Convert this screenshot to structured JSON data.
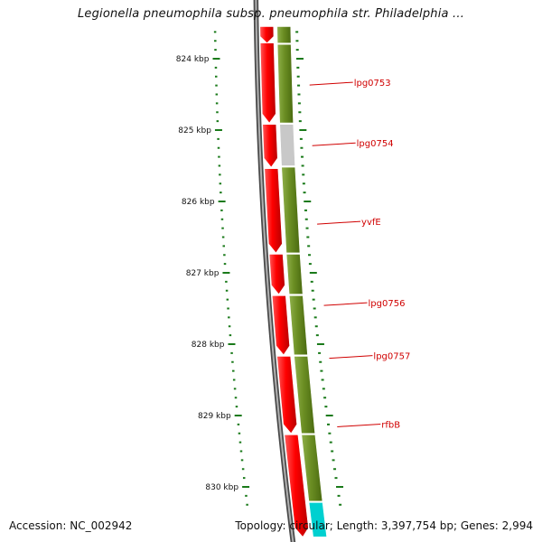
{
  "title": "Legionella pneumophila subsp. pneumophila str. Philadelphia ...",
  "footer": {
    "accession": "Accession: NC_002942",
    "summary": "Topology: circular; Length: 3,397,754 bp; Genes: 2,994"
  },
  "colors": {
    "backbone": "#808080",
    "reverse_strand": "#ff0000",
    "forward_strand": "#6b8e23",
    "gray_feature": "#c8c8c8",
    "cyan_feature": "#00d0d0",
    "tick": "#1a7a1a",
    "label": "#d00000"
  },
  "ruler": {
    "ticks": [
      {
        "kbp": 824,
        "label": "824 kbp"
      },
      {
        "kbp": 825,
        "label": "825 kbp"
      },
      {
        "kbp": 826,
        "label": "826 kbp"
      },
      {
        "kbp": 827,
        "label": "827 kbp"
      },
      {
        "kbp": 828,
        "label": "828 kbp"
      },
      {
        "kbp": 829,
        "label": "829 kbp"
      },
      {
        "kbp": 830,
        "label": "830 kbp"
      }
    ]
  },
  "reverse_features": [
    {
      "start": 823.55,
      "end": 823.78
    },
    {
      "start": 823.78,
      "end": 824.9
    },
    {
      "start": 824.92,
      "end": 825.52
    },
    {
      "start": 825.54,
      "end": 826.72
    },
    {
      "start": 826.74,
      "end": 827.3
    },
    {
      "start": 827.32,
      "end": 828.15
    },
    {
      "start": 828.17,
      "end": 829.25
    },
    {
      "start": 829.27,
      "end": 830.7
    }
  ],
  "forward_features": [
    {
      "start": 823.55,
      "end": 823.78,
      "color": "forward_strand"
    },
    {
      "start": 823.8,
      "end": 824.9,
      "color": "forward_strand"
    },
    {
      "start": 824.92,
      "end": 825.5,
      "color": "gray_feature"
    },
    {
      "start": 825.52,
      "end": 826.72,
      "color": "forward_strand"
    },
    {
      "start": 826.74,
      "end": 827.3,
      "color": "forward_strand"
    },
    {
      "start": 827.32,
      "end": 828.15,
      "color": "forward_strand"
    },
    {
      "start": 828.17,
      "end": 829.25,
      "color": "forward_strand"
    },
    {
      "start": 829.27,
      "end": 830.2,
      "color": "forward_strand"
    },
    {
      "start": 830.22,
      "end": 830.7,
      "color": "cyan_feature"
    }
  ],
  "gene_labels": [
    {
      "name": "lpg0753",
      "kbp": 824.33
    },
    {
      "name": "lpg0754",
      "kbp": 825.18
    },
    {
      "name": "yvfE",
      "kbp": 826.28
    },
    {
      "name": "lpg0756",
      "kbp": 827.42
    },
    {
      "name": "lpg0757",
      "kbp": 828.16
    },
    {
      "name": "rfbB",
      "kbp": 829.12
    }
  ]
}
